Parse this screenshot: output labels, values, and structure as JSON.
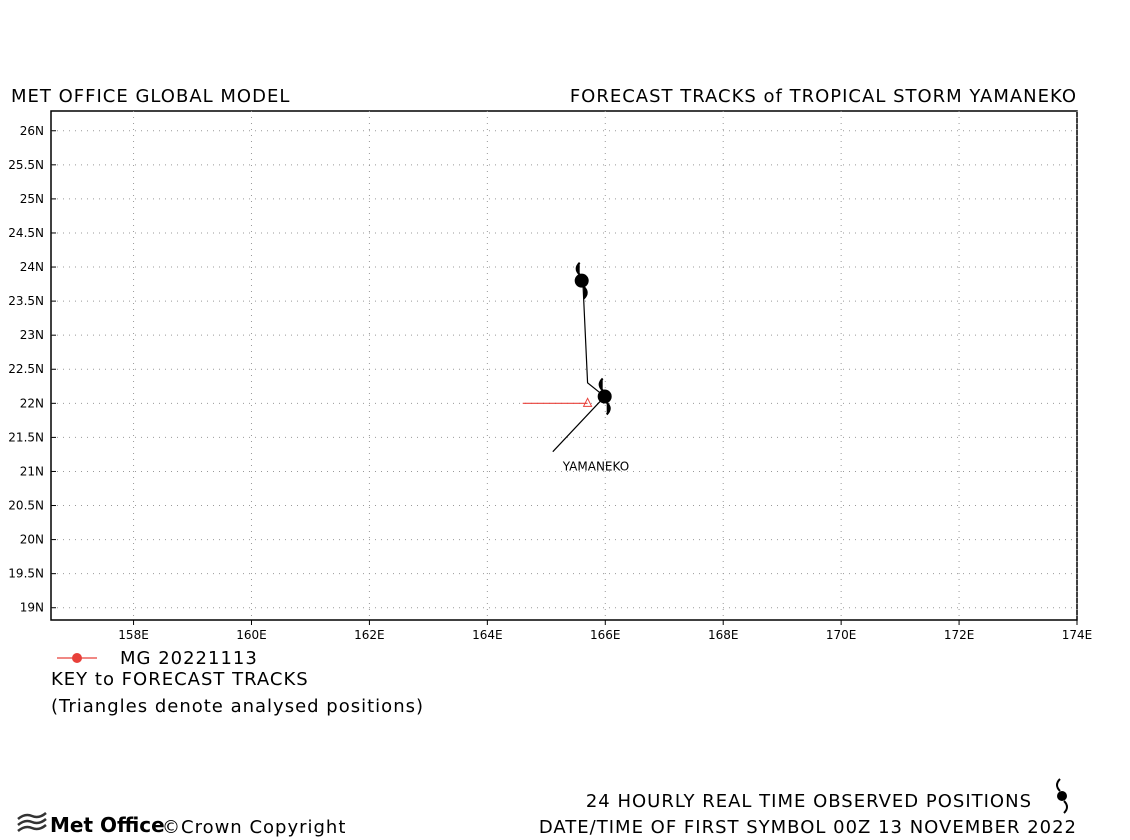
{
  "header": {
    "left": "MET OFFICE GLOBAL MODEL",
    "right": "FORECAST TRACKS of TROPICAL STORM YAMANEKO"
  },
  "chart_data": {
    "type": "track-map",
    "xlim": [
      156.6,
      174
    ],
    "ylim": [
      18.82,
      26.29
    ],
    "xticks": [
      {
        "value": 158,
        "label": "158E"
      },
      {
        "value": 160,
        "label": "160E"
      },
      {
        "value": 162,
        "label": "162E"
      },
      {
        "value": 164,
        "label": "164E"
      },
      {
        "value": 166,
        "label": "166E"
      },
      {
        "value": 168,
        "label": "168E"
      },
      {
        "value": 170,
        "label": "170E"
      },
      {
        "value": 172,
        "label": "172E"
      },
      {
        "value": 174,
        "label": "174E"
      }
    ],
    "yticks": [
      {
        "value": 19,
        "label": "19N"
      },
      {
        "value": 19.5,
        "label": "19.5N"
      },
      {
        "value": 20,
        "label": "20N"
      },
      {
        "value": 20.5,
        "label": "20.5N"
      },
      {
        "value": 21,
        "label": "21N"
      },
      {
        "value": 21.5,
        "label": "21.5N"
      },
      {
        "value": 22,
        "label": "22N"
      },
      {
        "value": 22.5,
        "label": "22.5N"
      },
      {
        "value": 23,
        "label": "23N"
      },
      {
        "value": 23.5,
        "label": "23.5N"
      },
      {
        "value": 24,
        "label": "24N"
      },
      {
        "value": 24.5,
        "label": "24.5N"
      },
      {
        "value": 25,
        "label": "25N"
      },
      {
        "value": 25.5,
        "label": "25.5N"
      },
      {
        "value": 26,
        "label": "26N"
      }
    ],
    "grid": true,
    "series": [
      {
        "name": "MG 20221113",
        "color": "#e8403a",
        "x": [
          165.7,
          164.6
        ],
        "y": [
          22.0,
          22.0
        ]
      }
    ],
    "observed": {
      "color": "#000000",
      "x": [
        165.11,
        165.99,
        165.7,
        165.62
      ],
      "y": [
        21.29,
        22.1,
        22.3,
        23.78
      ]
    },
    "storm_symbols": {
      "x": [
        165.99,
        165.6
      ],
      "y": [
        22.1,
        23.8
      ]
    },
    "annotation": "YAMANEKO"
  },
  "key": {
    "title": "KEY to FORECAST TRACKS",
    "note": "(Triangles denote analysed positions)"
  },
  "footer": {
    "logo": "Met Office",
    "copyright": "©Crown Copyright",
    "observed": "24 HOURLY REAL TIME OBSERVED POSITIONS",
    "datetime": "DATE/TIME OF FIRST SYMBOL 00Z 13 NOVEMBER 2022"
  }
}
